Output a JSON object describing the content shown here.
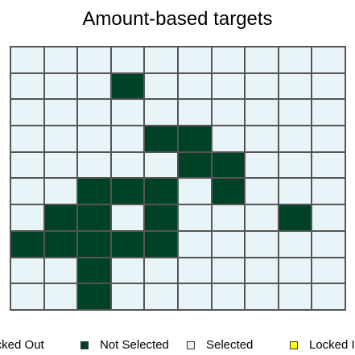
{
  "title": "Amount-based targets",
  "colors": {
    "selected": "#e8f4f8",
    "not_selected": "#004225",
    "locked_in": "#ffff00",
    "grid_line": "#555555"
  },
  "grid": {
    "rows": 10,
    "cols": 10,
    "status_codes": {
      "0": "selected",
      "1": "not_selected"
    },
    "cells": [
      [
        0,
        0,
        0,
        0,
        0,
        0,
        0,
        0,
        0,
        0
      ],
      [
        0,
        0,
        0,
        1,
        0,
        0,
        0,
        0,
        0,
        0
      ],
      [
        0,
        0,
        0,
        0,
        0,
        0,
        0,
        0,
        0,
        0
      ],
      [
        0,
        0,
        0,
        0,
        1,
        1,
        0,
        0,
        0,
        0
      ],
      [
        0,
        0,
        0,
        0,
        0,
        1,
        1,
        0,
        0,
        0
      ],
      [
        0,
        0,
        1,
        1,
        1,
        0,
        1,
        0,
        0,
        0
      ],
      [
        0,
        1,
        1,
        0,
        1,
        0,
        0,
        0,
        1,
        0
      ],
      [
        1,
        1,
        1,
        1,
        1,
        0,
        0,
        0,
        0,
        0
      ],
      [
        0,
        0,
        1,
        0,
        0,
        0,
        0,
        0,
        0,
        0
      ],
      [
        0,
        0,
        1,
        0,
        0,
        0,
        0,
        0,
        0,
        0
      ]
    ]
  },
  "legend": {
    "items": [
      {
        "label": "Locked Out",
        "swatch": "none"
      },
      {
        "label": "Not Selected",
        "swatch": "not_selected"
      },
      {
        "label": "Selected",
        "swatch": "selected"
      },
      {
        "label": "Locked In",
        "swatch": "locked_in"
      }
    ]
  }
}
